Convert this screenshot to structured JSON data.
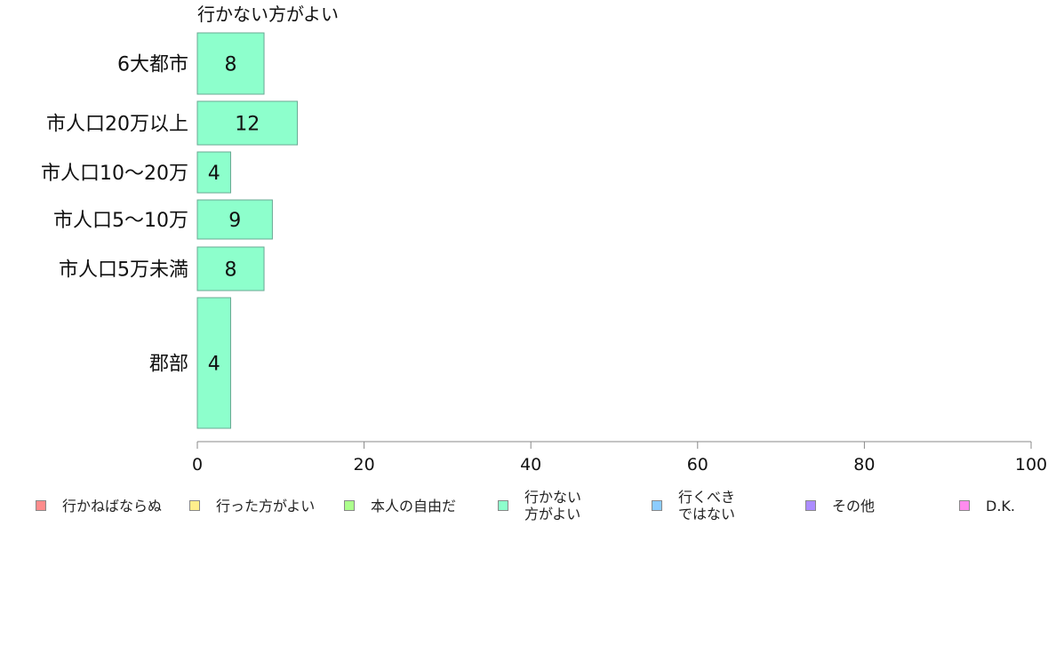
{
  "chart_data": {
    "type": "bar",
    "orientation": "horizontal",
    "title": "行かない方がよい",
    "categories": [
      "6大都市",
      "市人口20万以上",
      "市人口10〜20万",
      "市人口5〜10万",
      "市人口5万未満",
      "郡部"
    ],
    "values": [
      8,
      12,
      4,
      9,
      8,
      4
    ],
    "xlim": [
      0,
      100
    ],
    "xticks": [
      0,
      20,
      40,
      60,
      80,
      100
    ],
    "grid": false,
    "legend_position": "bottom",
    "bar_color": "#8dffcc",
    "series": [
      {
        "name": "行かない方がよい",
        "values": [
          8,
          12,
          4,
          9,
          8,
          4
        ]
      }
    ]
  },
  "legend": [
    {
      "label": "行かねばならぬ",
      "color": "#ff8c8c"
    },
    {
      "label": "行った方がよい",
      "color": "#ffee8c"
    },
    {
      "label": "本人の自由だ",
      "color": "#acff8c"
    },
    {
      "label": "行かない\n方がよい",
      "color": "#8dffcc"
    },
    {
      "label": "行くべき\nではない",
      "color": "#8cccff"
    },
    {
      "label": "その他",
      "color": "#ac8cff"
    },
    {
      "label": "D.K.",
      "color": "#ff8cee"
    }
  ]
}
